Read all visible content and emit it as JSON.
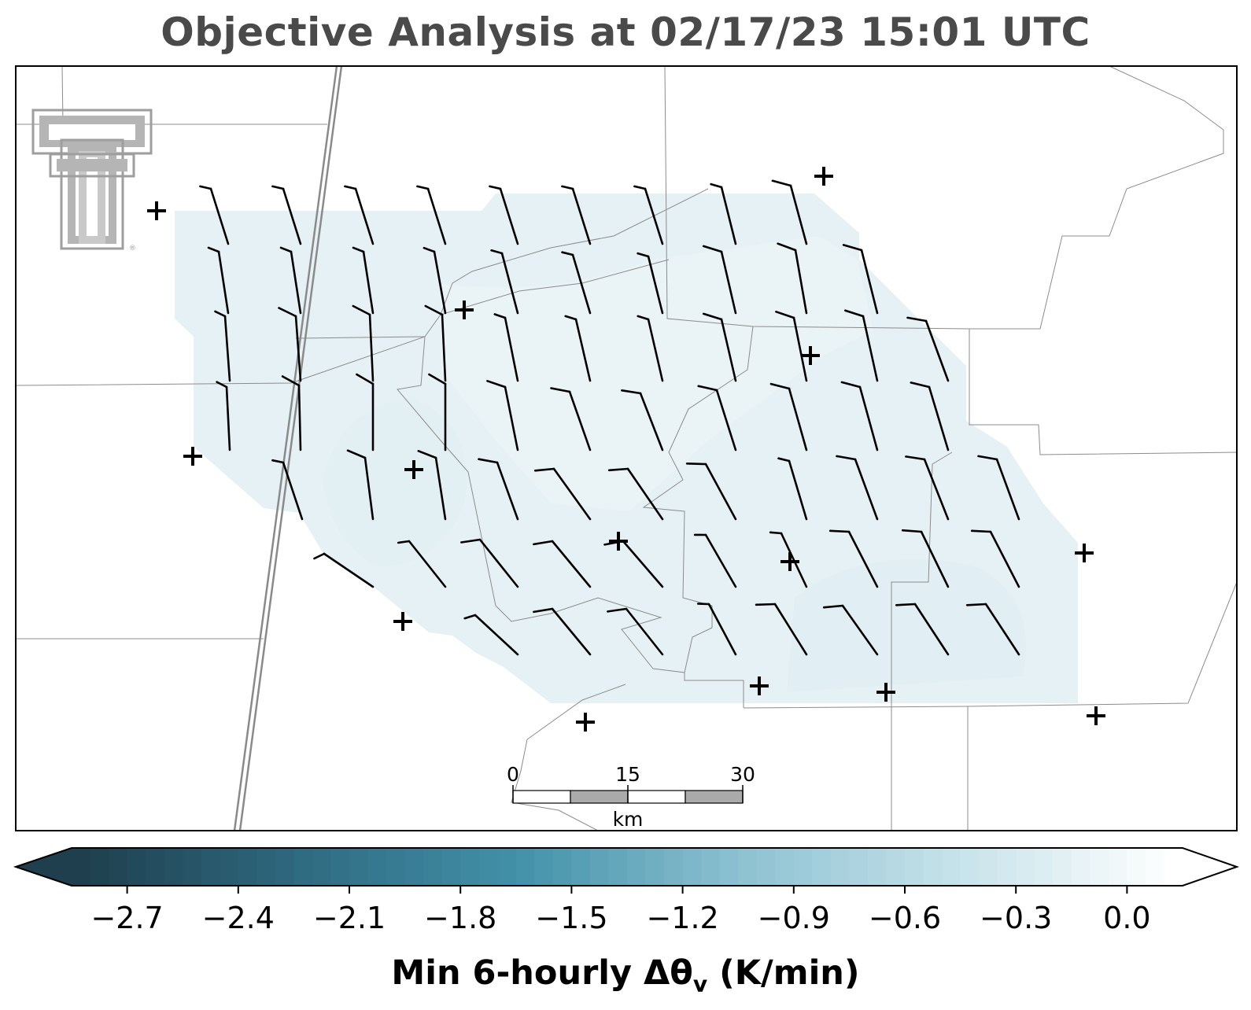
{
  "title": "Objective Analysis at 02/17/23 15:01 UTC",
  "colorbar": {
    "label_main": "Min 6-hourly Δθ",
    "label_sub": "v",
    "label_unit": " (K/min)",
    "min": -2.85,
    "max": 0.15,
    "ticks": [
      "−2.7",
      "−2.4",
      "−2.1",
      "−1.8",
      "−1.5",
      "−1.2",
      "−0.9",
      "−0.6",
      "−0.3",
      "0.0"
    ],
    "tick_values": [
      -2.7,
      -2.4,
      -2.1,
      -1.8,
      -1.5,
      -1.2,
      -0.9,
      -0.6,
      -0.3,
      0.0
    ],
    "colors": [
      "#1f3f4e",
      "#2f6a80",
      "#4291a9",
      "#8cc1d1",
      "#c6e2ea",
      "#ffffff"
    ]
  },
  "scale_bar": {
    "labels": [
      "0",
      "15",
      "30"
    ],
    "unit": "km"
  },
  "field_colors": [
    "#e6f1f5",
    "#eaf3f6",
    "#e1eef3"
  ],
  "logo": {
    "name": "texas-tech-double-t-logo",
    "color": "#9e9e9e"
  }
}
